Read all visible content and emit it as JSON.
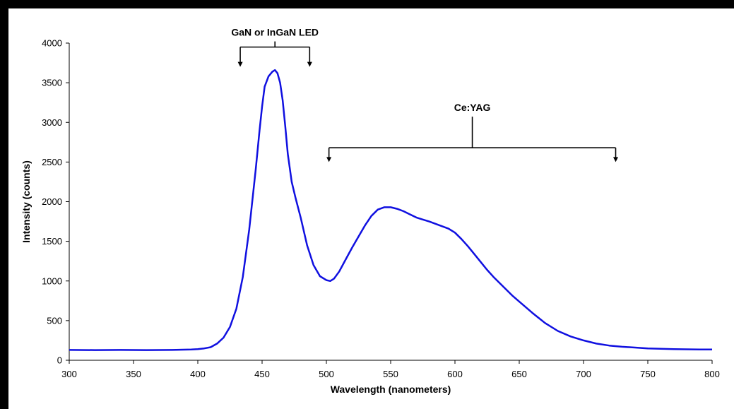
{
  "chart_data": {
    "type": "line",
    "title": "",
    "xlabel": "Wavelength (nanometers)",
    "ylabel": "Intensity (counts)",
    "xlim": [
      300,
      800
    ],
    "ylim": [
      0,
      4000
    ],
    "x_ticks": [
      300,
      350,
      400,
      450,
      500,
      550,
      600,
      650,
      700,
      750,
      800
    ],
    "y_ticks": [
      0,
      500,
      1000,
      1500,
      2000,
      2500,
      3000,
      3500,
      4000
    ],
    "grid": false,
    "legend": "none",
    "series_color": "#1010e0",
    "series": [
      {
        "x": [
          300,
          320,
          340,
          360,
          380,
          395,
          400,
          405,
          410,
          415,
          420,
          425,
          430,
          435,
          440,
          445,
          448,
          450,
          452,
          455,
          458,
          460,
          462,
          464,
          466,
          468,
          470,
          473,
          476,
          480,
          485,
          490,
          495,
          500,
          503,
          506,
          510,
          515,
          520,
          525,
          530,
          535,
          540,
          545,
          550,
          555,
          560,
          565,
          570,
          575,
          580,
          585,
          590,
          595,
          600,
          605,
          610,
          615,
          620,
          625,
          630,
          635,
          640,
          645,
          650,
          660,
          670,
          680,
          690,
          700,
          710,
          720,
          730,
          740,
          750,
          760,
          770,
          780,
          790,
          800
        ],
        "y": [
          130,
          128,
          130,
          128,
          130,
          135,
          140,
          150,
          165,
          210,
          285,
          420,
          650,
          1050,
          1650,
          2400,
          2900,
          3200,
          3450,
          3580,
          3640,
          3660,
          3620,
          3500,
          3280,
          2950,
          2600,
          2250,
          2050,
          1800,
          1450,
          1200,
          1060,
          1010,
          1000,
          1030,
          1120,
          1270,
          1420,
          1560,
          1700,
          1820,
          1900,
          1930,
          1930,
          1910,
          1880,
          1840,
          1800,
          1775,
          1750,
          1720,
          1690,
          1660,
          1610,
          1530,
          1440,
          1340,
          1240,
          1140,
          1050,
          970,
          890,
          810,
          740,
          600,
          470,
          370,
          300,
          250,
          210,
          185,
          170,
          160,
          150,
          145,
          140,
          138,
          135,
          135
        ]
      }
    ],
    "annotations": [
      {
        "label": "GaN or InGaN  LED",
        "from_x": 433,
        "to_x": 487,
        "arrow_y": 3700,
        "bar_y": 3950
      },
      {
        "label": "Ce:YAG",
        "from_x": 502,
        "to_x": 725,
        "arrow_y": 2500,
        "bar_y": 2680
      }
    ]
  }
}
